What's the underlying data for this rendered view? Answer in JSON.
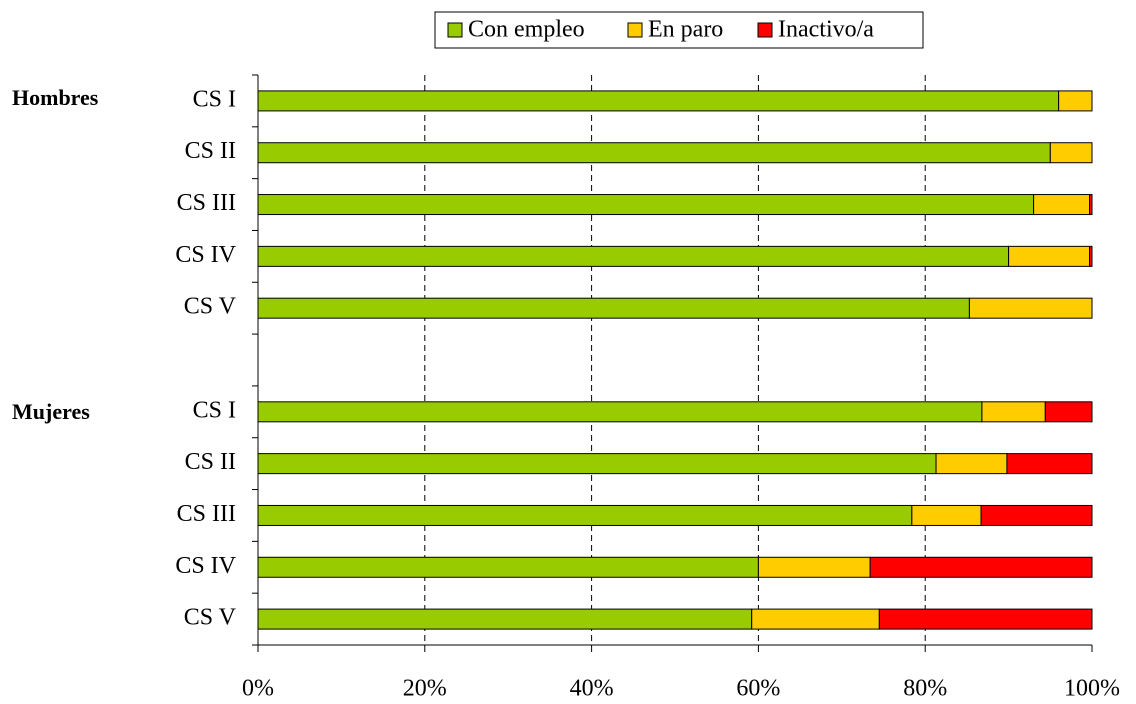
{
  "chart_data": {
    "type": "stacked-barh",
    "group_labels": [
      "Hombres",
      "Mujeres"
    ],
    "categories": [
      "CS I",
      "CS II",
      "CS III",
      "CS IV",
      "CS V",
      null,
      "CS I",
      "CS II",
      "CS III",
      "CS IV",
      "CS V"
    ],
    "series": [
      {
        "name": "Con empleo",
        "color": "#99cc00",
        "values": [
          96,
          95,
          93,
          90,
          85.3,
          null,
          86.8,
          81.3,
          78.4,
          60,
          59.2
        ]
      },
      {
        "name": "En paro",
        "color": "#ffcc00",
        "values": [
          4,
          5,
          6.7,
          9.7,
          14.7,
          null,
          7.6,
          8.5,
          8.3,
          13.4,
          15.3
        ]
      },
      {
        "name": "Inactivo/a",
        "color": "#ff0000",
        "values": [
          0,
          0,
          0.3,
          0.3,
          0,
          null,
          5.6,
          10.2,
          13.3,
          26.6,
          25.5
        ]
      }
    ],
    "xlim": [
      0,
      100
    ],
    "xticks": [
      {
        "value": 0,
        "label": "0%"
      },
      {
        "value": 20,
        "label": "20%"
      },
      {
        "value": 40,
        "label": "40%"
      },
      {
        "value": 60,
        "label": "60%"
      },
      {
        "value": 80,
        "label": "80%"
      },
      {
        "value": 100,
        "label": "100%"
      }
    ],
    "grid": true,
    "legend": "top"
  }
}
